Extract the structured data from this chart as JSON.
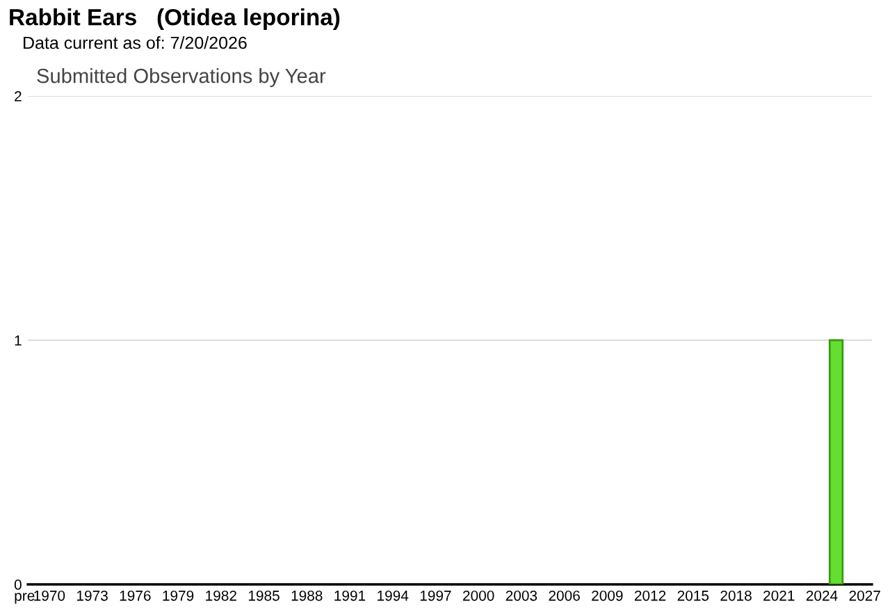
{
  "chart_data": {
    "type": "bar",
    "title": "Rabbit Ears   (Otidea leporina)",
    "subtitle": "Data current as of: 7/20/2026",
    "annotations": [
      "Submitted Observations by Year"
    ],
    "categories": [
      "pre",
      "1970",
      null,
      null,
      "1973",
      null,
      null,
      "1976",
      null,
      null,
      "1979",
      null,
      null,
      "1982",
      null,
      null,
      "1985",
      null,
      null,
      "1988",
      null,
      null,
      "1991",
      null,
      null,
      "1994",
      null,
      null,
      "1997",
      null,
      null,
      "2000",
      null,
      null,
      "2003",
      null,
      null,
      "2006",
      null,
      null,
      "2009",
      null,
      null,
      "2012",
      null,
      null,
      "2015",
      null,
      null,
      "2018",
      null,
      null,
      "2021",
      null,
      null,
      "2024",
      null,
      null,
      "2027"
    ],
    "values": [
      0,
      0,
      0,
      0,
      0,
      0,
      0,
      0,
      0,
      0,
      0,
      0,
      0,
      0,
      0,
      0,
      0,
      0,
      0,
      0,
      0,
      0,
      0,
      0,
      0,
      0,
      0,
      0,
      0,
      0,
      0,
      0,
      0,
      0,
      0,
      0,
      0,
      0,
      0,
      0,
      0,
      0,
      0,
      0,
      0,
      0,
      0,
      0,
      0,
      0,
      0,
      0,
      0,
      0,
      0,
      0,
      1,
      0,
      0
    ],
    "color": "#66dd33",
    "ylim": [
      0,
      2
    ],
    "yticks": [
      0,
      1,
      2
    ],
    "grid": "y",
    "legend": false
  }
}
